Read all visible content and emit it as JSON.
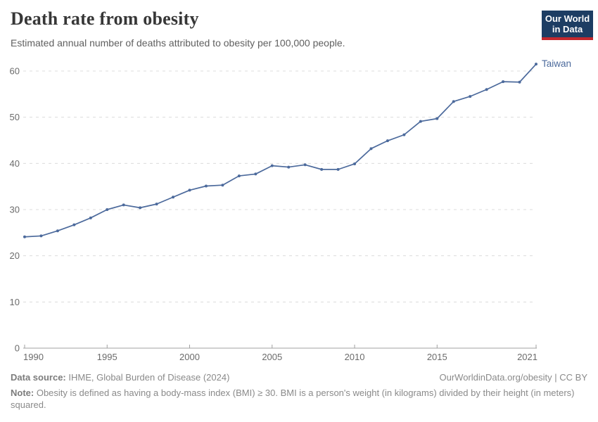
{
  "header": {
    "title": "Death rate from obesity",
    "subtitle": "Estimated annual number of deaths attributed to obesity per 100,000 people.",
    "logo_line1": "Our World",
    "logo_line2": "in Data",
    "logo_bg_color": "#1d3d63",
    "logo_accent_color": "#c3282d"
  },
  "chart_data": {
    "type": "line",
    "title": "Death rate from obesity",
    "subtitle": "Estimated annual number of deaths attributed to obesity per 100,000 people.",
    "xlim": [
      1990,
      2021
    ],
    "ylim": [
      0,
      60
    ],
    "x_ticks": [
      1990,
      1995,
      2000,
      2005,
      2010,
      2015,
      2021
    ],
    "y_ticks": [
      0,
      10,
      20,
      30,
      40,
      50,
      60
    ],
    "grid": "horizontal-dashed",
    "grid_color": "#dcdcdc",
    "axis_color": "#a0a0a0",
    "tick_label_color": "#6b6b6b",
    "legend_position": "end-of-line-label",
    "series": [
      {
        "name": "Taiwan",
        "color": "#4c6a9c",
        "x": [
          1990,
          1991,
          1992,
          1993,
          1994,
          1995,
          1996,
          1997,
          1998,
          1999,
          2000,
          2001,
          2002,
          2003,
          2004,
          2005,
          2006,
          2007,
          2008,
          2009,
          2010,
          2011,
          2012,
          2013,
          2014,
          2015,
          2016,
          2017,
          2018,
          2019,
          2020,
          2021
        ],
        "values": [
          24.1,
          24.3,
          25.4,
          26.7,
          28.2,
          30.0,
          31.0,
          30.4,
          31.2,
          32.7,
          34.2,
          35.1,
          35.3,
          37.3,
          37.7,
          39.5,
          39.2,
          39.7,
          38.7,
          38.7,
          39.9,
          43.2,
          44.9,
          46.2,
          49.1,
          49.7,
          53.4,
          54.5,
          56.0,
          57.7,
          57.6,
          61.5
        ]
      }
    ]
  },
  "footer": {
    "datasource_label": "Data source:",
    "datasource_value": "IHME, Global Burden of Disease (2024)",
    "link": "OurWorldinData.org/obesity | CC BY",
    "note_label": "Note:",
    "note_value": "Obesity is defined as having a body-mass index (BMI) ≥ 30. BMI is a person's weight (in kilograms) divided by their height (in meters) squared."
  }
}
